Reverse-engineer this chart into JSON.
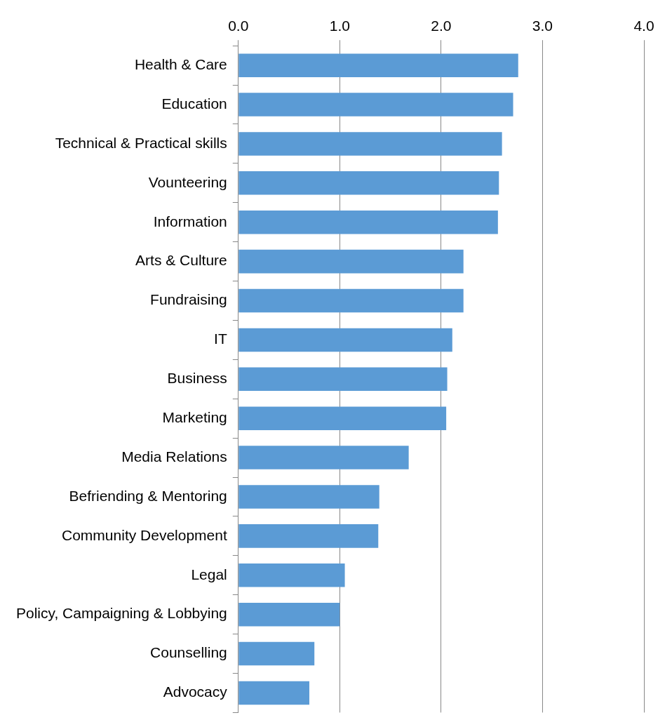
{
  "chart_data": {
    "type": "bar",
    "orientation": "horizontal",
    "categories": [
      "Health & Care",
      "Education",
      "Technical & Practical skills",
      "Vounteering",
      "Information",
      "Arts & Culture",
      "Fundraising",
      "IT",
      "Business",
      "Marketing",
      "Media Relations",
      "Befriending & Mentoring",
      "Community Development",
      "Legal",
      "Policy, Campaigning & Lobbying",
      "Counselling",
      "Advocacy"
    ],
    "values": [
      2.76,
      2.71,
      2.6,
      2.57,
      2.56,
      2.22,
      2.22,
      2.11,
      2.06,
      2.05,
      1.68,
      1.39,
      1.38,
      1.05,
      1.0,
      0.75,
      0.7
    ],
    "color": "#5b9bd5",
    "xlim": [
      0,
      4
    ],
    "xticks": [
      {
        "value": 0,
        "label": "0.0"
      },
      {
        "value": 1,
        "label": "1.0"
      },
      {
        "value": 2,
        "label": "2.0"
      },
      {
        "value": 3,
        "label": "3.0"
      },
      {
        "value": 4,
        "label": "4.0"
      }
    ],
    "grid": "x"
  }
}
